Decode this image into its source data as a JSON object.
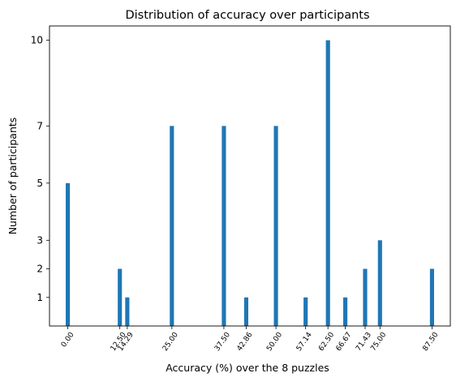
{
  "chart_data": {
    "type": "bar",
    "title": "Distribution of accuracy over participants",
    "xlabel": "Accuracy (%) over the 8 puzzles",
    "ylabel": "Number of participants",
    "x": [
      0.0,
      12.5,
      14.29,
      25.0,
      37.5,
      42.86,
      50.0,
      57.14,
      62.5,
      66.67,
      71.43,
      75.0,
      87.5
    ],
    "x_tick_labels": [
      "0.00",
      "12.50",
      "14.29",
      "25.00",
      "37.50",
      "42.86",
      "50.00",
      "57.14",
      "62.50",
      "66.67",
      "71.43",
      "75.00",
      "87.50"
    ],
    "values": [
      5,
      2,
      1,
      7,
      7,
      1,
      7,
      1,
      10,
      1,
      2,
      3,
      2
    ],
    "y_ticks": [
      1,
      2,
      3,
      5,
      7,
      10
    ],
    "xlim": [
      -4.4,
      91.9
    ],
    "ylim": [
      0,
      10.5
    ],
    "grid": false,
    "bar_color": "#1f77b4"
  }
}
